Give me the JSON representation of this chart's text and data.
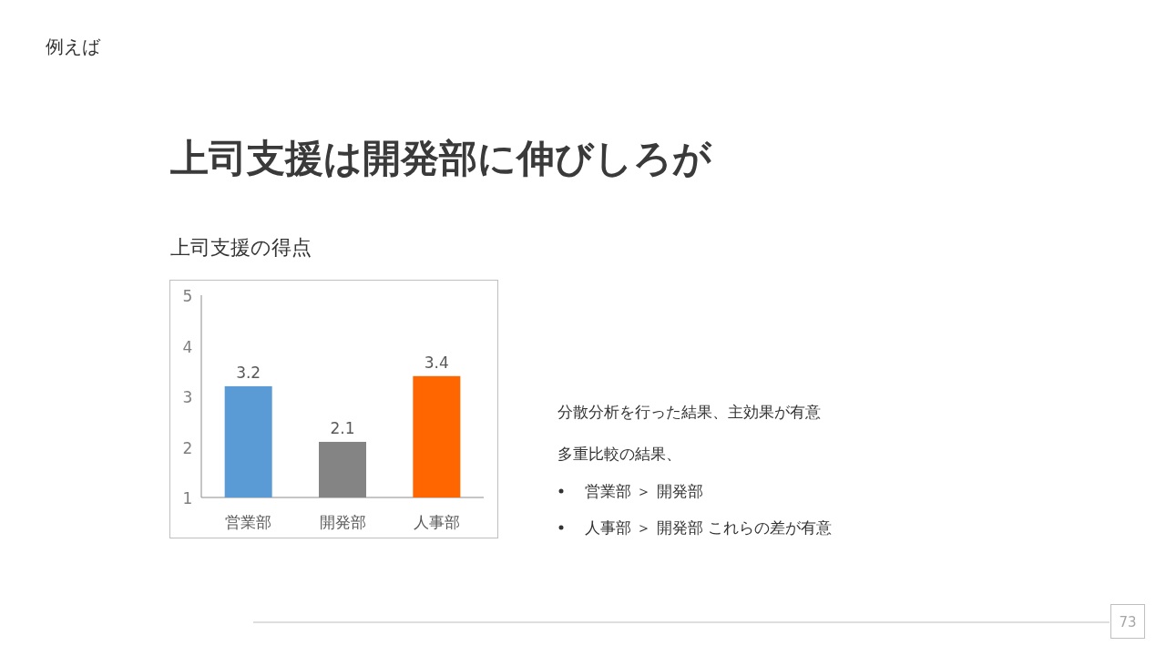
{
  "chart_data": {
    "type": "bar",
    "title": "上司支援は開発部に伸びしろが",
    "subtitle": "上司支援の得点",
    "categories": [
      "営業部",
      "開発部",
      "人事部"
    ],
    "values": [
      3.2,
      2.1,
      3.4
    ],
    "colors": [
      "#5b9bd5",
      "#848484",
      "#ff6600"
    ],
    "ylim": [
      1,
      5
    ],
    "yticks": [
      1,
      2,
      3,
      4,
      5
    ],
    "grid": false,
    "data_labels": true,
    "annotations": [
      "例えば",
      "分散分析を行った結果、主効果が有意",
      "多重比較の結果、",
      "営業部 ＞ 開発部",
      "人事部 ＞ 開発部  これらの差が有意",
      "73"
    ]
  }
}
